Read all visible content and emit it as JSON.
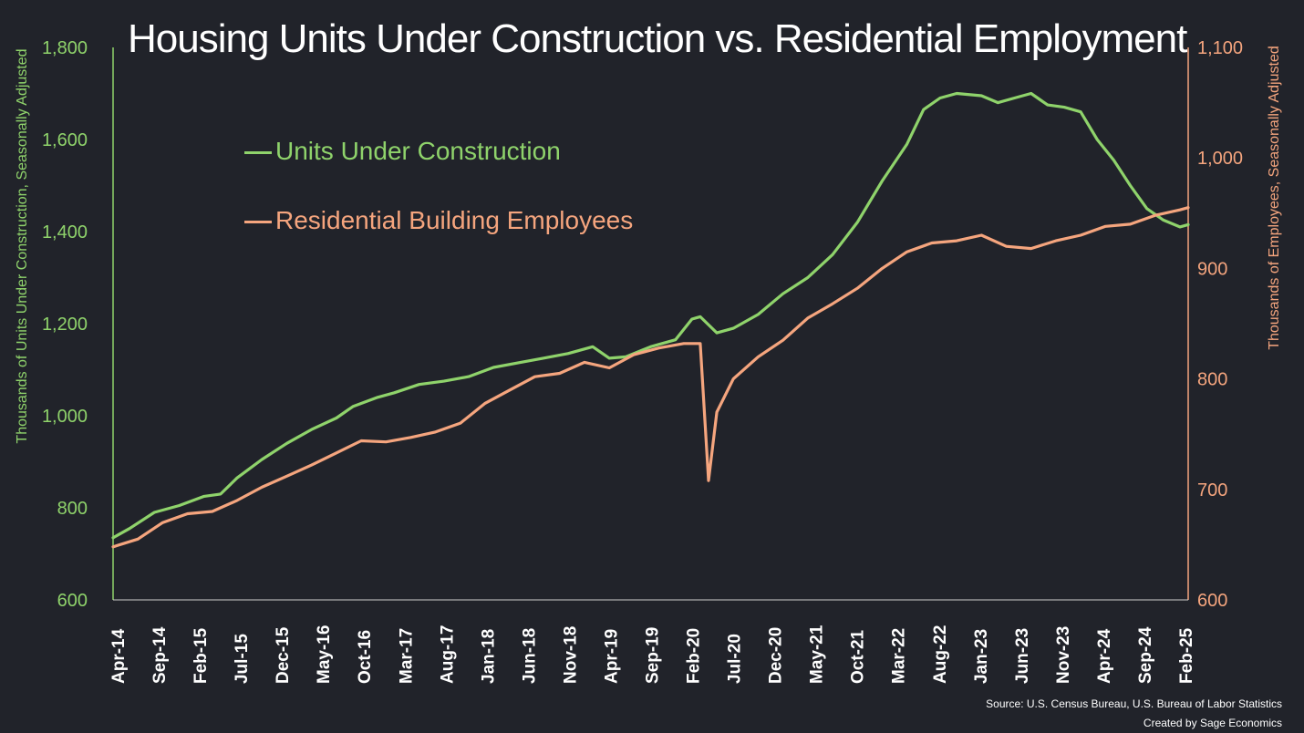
{
  "title": "Housing Units Under Construction vs. Residential Employment",
  "source_line": "Source: U.S. Census Bureau, U.S. Bureau of Labor Statistics",
  "credit_line": "Created by Sage Economics",
  "colors": {
    "background": "#21232a",
    "units": "#8fd36b",
    "employees": "#f5a57e",
    "text": "#ffffff"
  },
  "chart_data": {
    "type": "line",
    "title": "Housing Units Under Construction vs. Residential Employment",
    "ylabel_left": "Thousands of Units Under Construction, Seasonally Adjusted",
    "ylabel_right": "Thousands of Employees, Seasonally Adjusted",
    "ylim_left": [
      600,
      1800
    ],
    "ylim_right": [
      600,
      1100
    ],
    "yticks_left": [
      "600",
      "800",
      "1,000",
      "1,200",
      "1,400",
      "1,600",
      "1,800"
    ],
    "yticks_right": [
      "600",
      "700",
      "800",
      "900",
      "1,000",
      "1,100"
    ],
    "x_range": [
      "2014-04",
      "2025-02"
    ],
    "x_tick_labels": [
      "Apr-14",
      "Sep-14",
      "Feb-15",
      "Jul-15",
      "Dec-15",
      "May-16",
      "Oct-16",
      "Mar-17",
      "Aug-17",
      "Jan-18",
      "Jun-18",
      "Nov-18",
      "Apr-19",
      "Sep-19",
      "Feb-20",
      "Jul-20",
      "Dec-20",
      "May-21",
      "Oct-21",
      "Mar-22",
      "Aug-22",
      "Jan-23",
      "Jun-23",
      "Nov-23",
      "Apr-24",
      "Sep-24",
      "Feb-25"
    ],
    "legend_position": "top-left",
    "grid": false,
    "series": [
      {
        "name": "Units Under Construction",
        "axis": "left",
        "color": "#8fd36b",
        "points": [
          [
            "2014-04",
            735
          ],
          [
            "2014-06",
            755
          ],
          [
            "2014-09",
            790
          ],
          [
            "2014-12",
            805
          ],
          [
            "2015-03",
            825
          ],
          [
            "2015-05",
            830
          ],
          [
            "2015-07",
            865
          ],
          [
            "2015-10",
            905
          ],
          [
            "2016-01",
            940
          ],
          [
            "2016-04",
            970
          ],
          [
            "2016-07",
            995
          ],
          [
            "2016-09",
            1020
          ],
          [
            "2016-12",
            1040
          ],
          [
            "2017-02",
            1050
          ],
          [
            "2017-05",
            1068
          ],
          [
            "2017-08",
            1075
          ],
          [
            "2017-11",
            1085
          ],
          [
            "2018-02",
            1105
          ],
          [
            "2018-05",
            1115
          ],
          [
            "2018-08",
            1125
          ],
          [
            "2018-11",
            1135
          ],
          [
            "2019-02",
            1150
          ],
          [
            "2019-04",
            1125
          ],
          [
            "2019-06",
            1128
          ],
          [
            "2019-09",
            1150
          ],
          [
            "2019-12",
            1165
          ],
          [
            "2020-02",
            1210
          ],
          [
            "2020-03",
            1215
          ],
          [
            "2020-05",
            1180
          ],
          [
            "2020-07",
            1190
          ],
          [
            "2020-10",
            1220
          ],
          [
            "2021-01",
            1265
          ],
          [
            "2021-04",
            1300
          ],
          [
            "2021-07",
            1350
          ],
          [
            "2021-10",
            1420
          ],
          [
            "2022-01",
            1510
          ],
          [
            "2022-04",
            1590
          ],
          [
            "2022-06",
            1665
          ],
          [
            "2022-08",
            1690
          ],
          [
            "2022-10",
            1700
          ],
          [
            "2023-01",
            1695
          ],
          [
            "2023-03",
            1680
          ],
          [
            "2023-05",
            1690
          ],
          [
            "2023-07",
            1700
          ],
          [
            "2023-09",
            1675
          ],
          [
            "2023-11",
            1670
          ],
          [
            "2024-01",
            1660
          ],
          [
            "2024-03",
            1600
          ],
          [
            "2024-05",
            1555
          ],
          [
            "2024-07",
            1500
          ],
          [
            "2024-09",
            1450
          ],
          [
            "2024-11",
            1425
          ],
          [
            "2025-01",
            1410
          ],
          [
            "2025-02",
            1415
          ]
        ]
      },
      {
        "name": "Residential Building Employees",
        "axis": "right",
        "color": "#f5a57e",
        "points": [
          [
            "2014-04",
            648
          ],
          [
            "2014-07",
            655
          ],
          [
            "2014-10",
            670
          ],
          [
            "2015-01",
            678
          ],
          [
            "2015-04",
            680
          ],
          [
            "2015-07",
            690
          ],
          [
            "2015-10",
            702
          ],
          [
            "2016-01",
            712
          ],
          [
            "2016-04",
            722
          ],
          [
            "2016-07",
            733
          ],
          [
            "2016-10",
            744
          ],
          [
            "2017-01",
            743
          ],
          [
            "2017-04",
            747
          ],
          [
            "2017-07",
            752
          ],
          [
            "2017-10",
            760
          ],
          [
            "2018-01",
            778
          ],
          [
            "2018-04",
            790
          ],
          [
            "2018-07",
            802
          ],
          [
            "2018-10",
            805
          ],
          [
            "2019-01",
            815
          ],
          [
            "2019-04",
            810
          ],
          [
            "2019-07",
            822
          ],
          [
            "2019-10",
            828
          ],
          [
            "2020-01",
            832
          ],
          [
            "2020-03",
            832
          ],
          [
            "2020-04",
            708
          ],
          [
            "2020-05",
            770
          ],
          [
            "2020-07",
            800
          ],
          [
            "2020-10",
            820
          ],
          [
            "2021-01",
            835
          ],
          [
            "2021-04",
            855
          ],
          [
            "2021-07",
            868
          ],
          [
            "2021-10",
            882
          ],
          [
            "2022-01",
            900
          ],
          [
            "2022-04",
            915
          ],
          [
            "2022-07",
            923
          ],
          [
            "2022-10",
            925
          ],
          [
            "2023-01",
            930
          ],
          [
            "2023-04",
            920
          ],
          [
            "2023-07",
            918
          ],
          [
            "2023-10",
            925
          ],
          [
            "2024-01",
            930
          ],
          [
            "2024-04",
            938
          ],
          [
            "2024-07",
            940
          ],
          [
            "2024-10",
            948
          ],
          [
            "2025-01",
            953
          ],
          [
            "2025-02",
            955
          ]
        ]
      }
    ]
  }
}
